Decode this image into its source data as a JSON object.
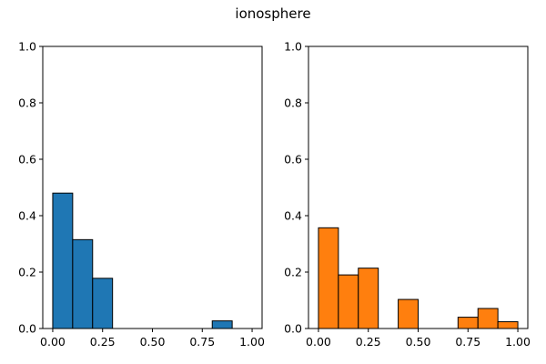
{
  "figure": {
    "title": "ionosphere"
  },
  "chart_data": [
    {
      "type": "bar",
      "subplot": "left",
      "color": "#1f77b4",
      "edgecolor": "#000000",
      "xlim": [
        -0.05,
        1.05
      ],
      "ylim": [
        0,
        1
      ],
      "xticks": [
        "0.00",
        "0.25",
        "0.50",
        "0.75",
        "1.00"
      ],
      "yticks": [
        "0.0",
        "0.2",
        "0.4",
        "0.6",
        "0.8",
        "1.0"
      ],
      "bars": [
        {
          "x0": 0.0,
          "x1": 0.1,
          "value": 0.48
        },
        {
          "x0": 0.1,
          "x1": 0.2,
          "value": 0.315
        },
        {
          "x0": 0.2,
          "x1": 0.3,
          "value": 0.178
        },
        {
          "x0": 0.3,
          "x1": 0.4,
          "value": 0.0
        },
        {
          "x0": 0.4,
          "x1": 0.5,
          "value": 0.0
        },
        {
          "x0": 0.5,
          "x1": 0.6,
          "value": 0.0
        },
        {
          "x0": 0.6,
          "x1": 0.7,
          "value": 0.0
        },
        {
          "x0": 0.7,
          "x1": 0.8,
          "value": 0.0
        },
        {
          "x0": 0.8,
          "x1": 0.9,
          "value": 0.027
        },
        {
          "x0": 0.9,
          "x1": 1.0,
          "value": 0.0
        }
      ]
    },
    {
      "type": "bar",
      "subplot": "right",
      "color": "#ff7f0e",
      "edgecolor": "#000000",
      "xlim": [
        -0.05,
        1.05
      ],
      "ylim": [
        0,
        1
      ],
      "xticks": [
        "0.00",
        "0.25",
        "0.50",
        "0.75",
        "1.00"
      ],
      "yticks": [
        "0.0",
        "0.2",
        "0.4",
        "0.6",
        "0.8",
        "1.0"
      ],
      "bars": [
        {
          "x0": 0.0,
          "x1": 0.1,
          "value": 0.357
        },
        {
          "x0": 0.1,
          "x1": 0.2,
          "value": 0.19
        },
        {
          "x0": 0.2,
          "x1": 0.3,
          "value": 0.214
        },
        {
          "x0": 0.3,
          "x1": 0.4,
          "value": 0.0
        },
        {
          "x0": 0.4,
          "x1": 0.5,
          "value": 0.103
        },
        {
          "x0": 0.5,
          "x1": 0.6,
          "value": 0.0
        },
        {
          "x0": 0.6,
          "x1": 0.7,
          "value": 0.0
        },
        {
          "x0": 0.7,
          "x1": 0.8,
          "value": 0.04
        },
        {
          "x0": 0.8,
          "x1": 0.9,
          "value": 0.071
        },
        {
          "x0": 0.9,
          "x1": 1.0,
          "value": 0.024
        }
      ]
    }
  ]
}
